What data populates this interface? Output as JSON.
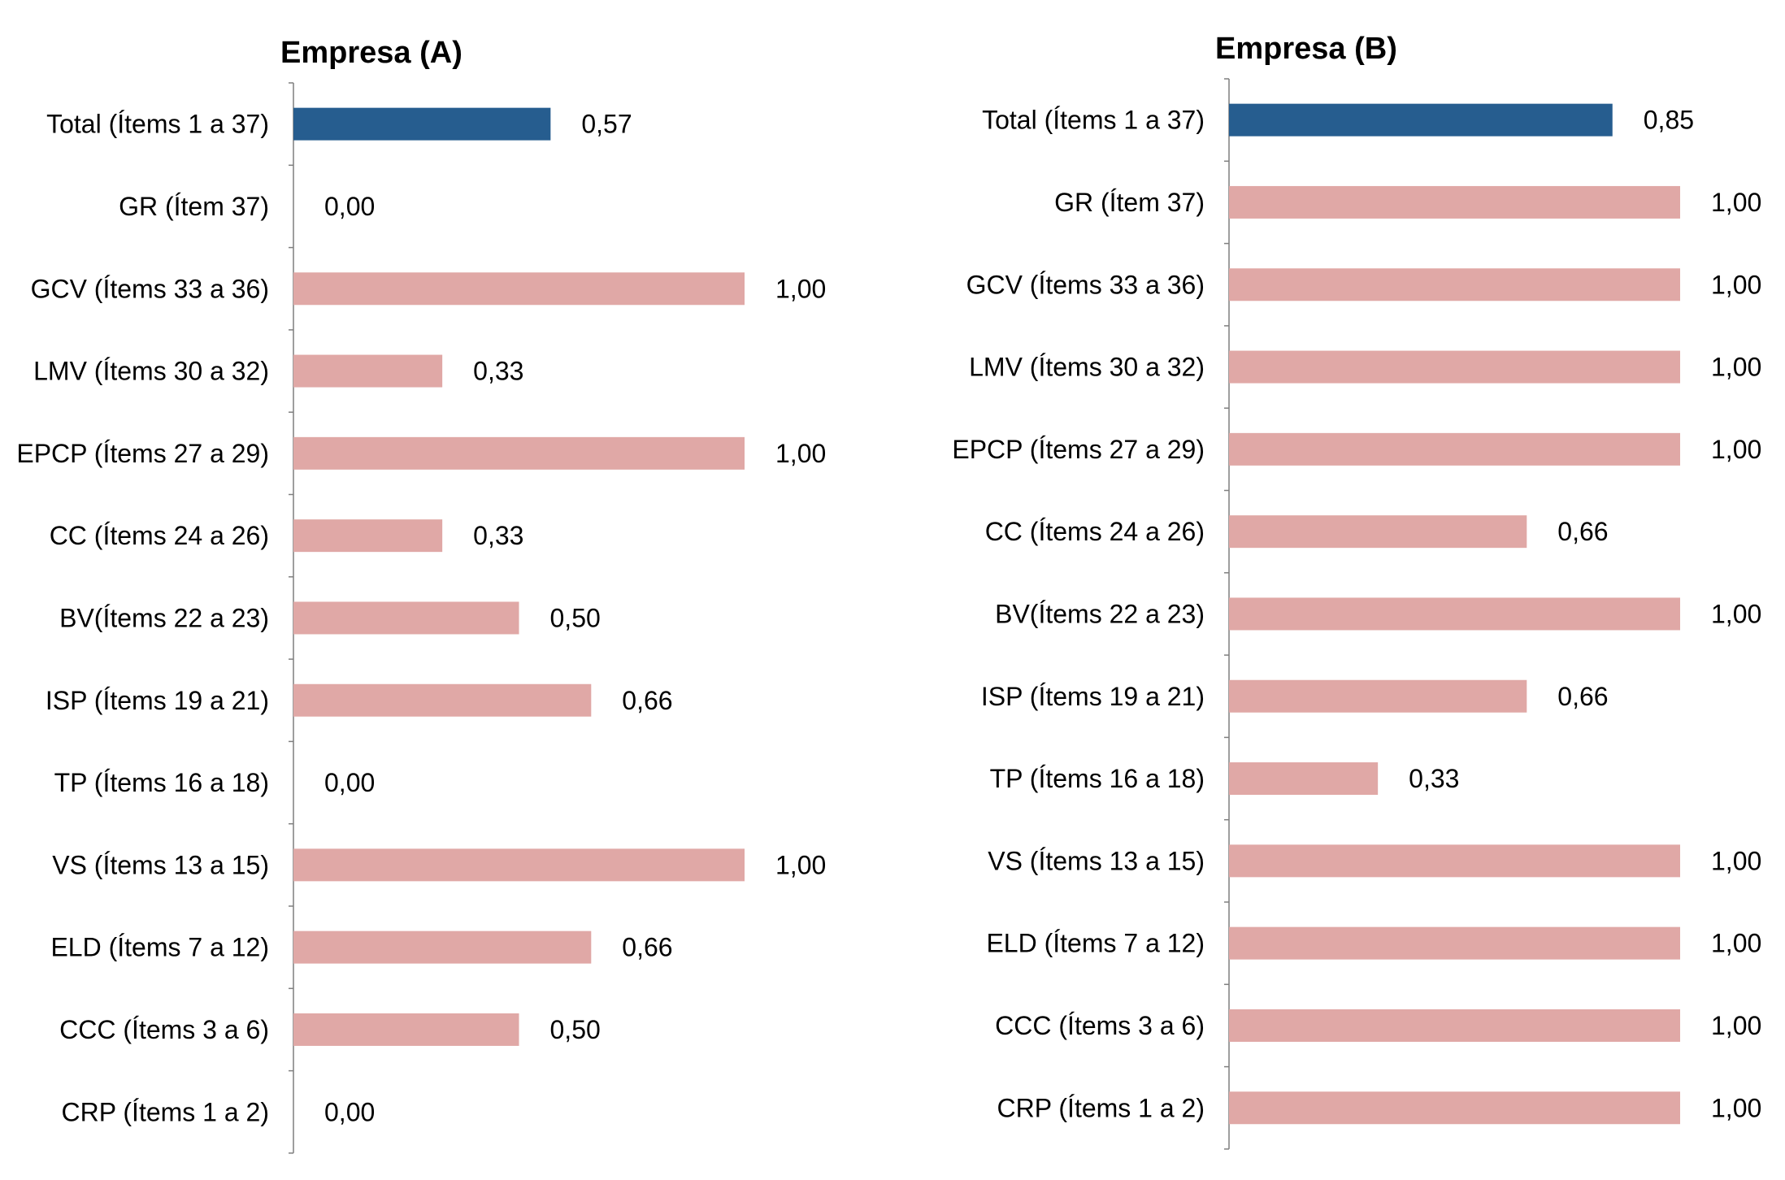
{
  "chart_data": [
    {
      "type": "bar",
      "orientation": "horizontal",
      "title": "Empresa (A)",
      "xlim": [
        0,
        1
      ],
      "categories": [
        "Total (Ítems 1 a 37)",
        "GR (Ítem 37)",
        "GCV (Ítems 33 a 36)",
        "LMV (Ítems 30 a 32)",
        "EPCP (Ítems 27 a 29)",
        "CC (Ítems 24 a 26)",
        "BV(Ítems 22 a 23)",
        "ISP (Ítems 19 a 21)",
        "TP (Ítems 16 a 18)",
        "VS (Ítems 13 a 15)",
        "ELD (Ítems 7 a 12)",
        "CCC (Ítems 3 a 6)",
        "CRP (Ítems 1 a 2)"
      ],
      "values": [
        0.57,
        0.0,
        1.0,
        0.33,
        1.0,
        0.33,
        0.5,
        0.66,
        0.0,
        1.0,
        0.66,
        0.5,
        0.0
      ],
      "labels": [
        "0,57",
        "0,00",
        "1,00",
        "0,33",
        "1,00",
        "0,33",
        "0,50",
        "0,66",
        "0,00",
        "1,00",
        "0,66",
        "0,50",
        "0,00"
      ],
      "colors": [
        "#265d8f",
        "#e0a8a6",
        "#e0a8a6",
        "#e0a8a6",
        "#e0a8a6",
        "#e0a8a6",
        "#e0a8a6",
        "#e0a8a6",
        "#e0a8a6",
        "#e0a8a6",
        "#e0a8a6",
        "#e0a8a6",
        "#e0a8a6"
      ],
      "grid": false
    },
    {
      "type": "bar",
      "orientation": "horizontal",
      "title": "Empresa (B)",
      "xlim": [
        0,
        1
      ],
      "categories": [
        "Total (Ítems 1 a 37)",
        "GR (Ítem 37)",
        "GCV (Ítems 33 a 36)",
        "LMV (Ítems 30 a 32)",
        "EPCP (Ítems 27 a 29)",
        "CC (Ítems 24 a 26)",
        "BV(Ítems 22 a 23)",
        "ISP (Ítems 19 a 21)",
        "TP (Ítems 16 a 18)",
        "VS (Ítems 13 a 15)",
        "ELD (Ítems 7 a 12)",
        "CCC (Ítems 3 a 6)",
        "CRP (Ítems 1 a 2)"
      ],
      "values": [
        0.85,
        1.0,
        1.0,
        1.0,
        1.0,
        0.66,
        1.0,
        0.66,
        0.33,
        1.0,
        1.0,
        1.0,
        1.0
      ],
      "labels": [
        "0,85",
        "1,00",
        "1,00",
        "1,00",
        "1,00",
        "0,66",
        "1,00",
        "0,66",
        "0,33",
        "1,00",
        "1,00",
        "1,00",
        "1,00"
      ],
      "colors": [
        "#265d8f",
        "#e0a8a6",
        "#e0a8a6",
        "#e0a8a6",
        "#e0a8a6",
        "#e0a8a6",
        "#e0a8a6",
        "#e0a8a6",
        "#e0a8a6",
        "#e0a8a6",
        "#e0a8a6",
        "#e0a8a6",
        "#e0a8a6"
      ],
      "grid": false
    }
  ]
}
